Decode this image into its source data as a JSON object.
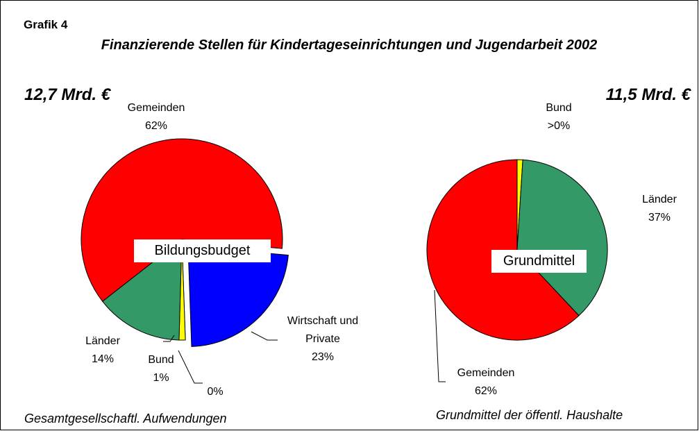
{
  "header": "Grafik 4",
  "title": "Finanzierende Stellen für Kindertageseinrichtungen und Jugendarbeit 2002",
  "chart_data": [
    {
      "type": "pie",
      "total": "12,7 Mrd. €",
      "center_label": "Bildungsbudget",
      "caption": "Gesamtgesellschaftl. Aufwendungen",
      "categories": [
        "Gemeinden",
        "Wirtschaft und Private",
        null,
        "Bund",
        "Länder"
      ],
      "values": [
        62,
        23,
        0,
        1,
        14
      ],
      "value_labels": [
        "62%",
        "23%",
        "0%",
        "1%",
        "14%"
      ],
      "colors": [
        "#ff0000",
        "#0000ff",
        null,
        "#ffff00",
        "#339966"
      ],
      "explode": [
        false,
        true,
        false,
        false,
        false
      ]
    },
    {
      "type": "pie",
      "total": "11,5 Mrd. €",
      "center_label": "Grundmittel",
      "caption": "Grundmittel der öffentl. Haushalte",
      "categories": [
        "Bund",
        "Länder",
        "Gemeinden"
      ],
      "values": [
        1,
        37,
        62
      ],
      "value_labels": [
        ">0%",
        "37%",
        "62%"
      ],
      "colors": [
        "#ffff00",
        "#339966",
        "#ff0000"
      ],
      "explode": [
        false,
        false,
        false
      ]
    }
  ]
}
